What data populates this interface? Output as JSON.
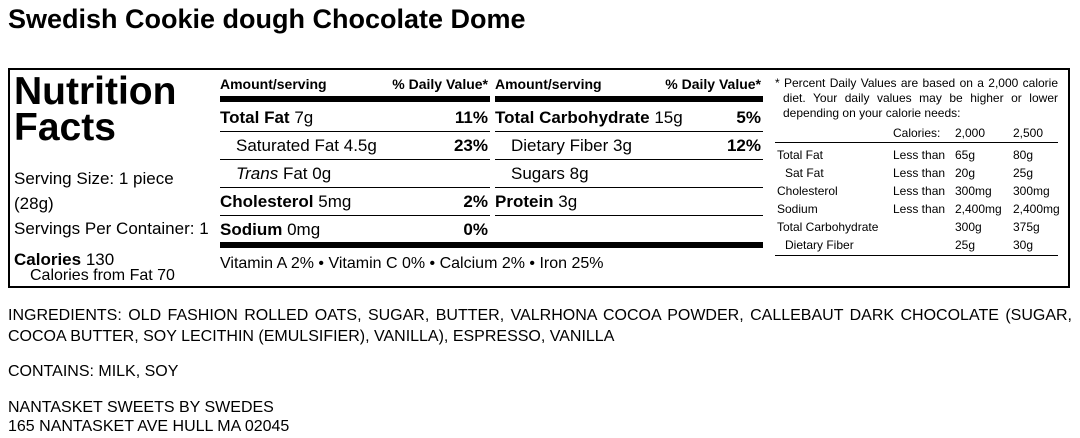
{
  "title": "Swedish Cookie dough Chocolate Dome",
  "label": {
    "heading": "Nutrition Facts",
    "serving_size": "Serving Size: 1 piece (28g)",
    "servings_per_container": "Servings Per Container: 1",
    "calories": {
      "label": "Calories",
      "value": "130"
    },
    "calories_from_fat": "Calories from Fat 70",
    "columns": [
      {
        "amount_header": "Amount/serving",
        "dv_header": "% Daily Value*",
        "rows": [
          {
            "name": "Total Fat",
            "amount": "7g",
            "dv": "11%",
            "bold": true
          },
          {
            "name": "Saturated Fat",
            "amount": "4.5g",
            "dv": "23%",
            "indent": true
          },
          {
            "italic": "Trans",
            "name": "Fat",
            "amount": "0g",
            "indent": true
          },
          {
            "name": "Cholesterol",
            "amount": "5mg",
            "dv": "2%",
            "bold": true
          },
          {
            "name": "Sodium",
            "amount": "0mg",
            "dv": "0%",
            "bold": true
          }
        ]
      },
      {
        "amount_header": "Amount/serving",
        "dv_header": "% Daily Value*",
        "rows": [
          {
            "name": "Total Carbohydrate",
            "amount": "15g",
            "dv": "5%",
            "bold": true
          },
          {
            "name": "Dietary Fiber",
            "amount": "3g",
            "dv": "12%",
            "indent": true
          },
          {
            "name": "Sugars",
            "amount": "8g",
            "indent": true
          },
          {
            "name": "Protein",
            "amount": "3g",
            "bold": true
          }
        ]
      }
    ],
    "vitamins": "Vitamin A 2% • Vitamin C 0% • Calcium 2% • Iron 25%",
    "footnote": {
      "text": "* Percent Daily Values are based on a 2,000 calorie diet. Your daily values may be higher or lower depending on your calorie needs:",
      "header": [
        "Calories:",
        "2,000",
        "2,500"
      ],
      "rows": [
        {
          "name": "Total Fat",
          "relation": "Less than",
          "v2000": "65g",
          "v2500": "80g"
        },
        {
          "name": "Sat Fat",
          "relation": "Less than",
          "v2000": "20g",
          "v2500": "25g",
          "indent": true
        },
        {
          "name": "Cholesterol",
          "relation": "Less than",
          "v2000": "300mg",
          "v2500": "300mg"
        },
        {
          "name": "Sodium",
          "relation": "Less than",
          "v2000": "2,400mg",
          "v2500": "2,400mg"
        },
        {
          "name": "Total Carbohydrate",
          "v2000": "300g",
          "v2500": "375g"
        },
        {
          "name": "Dietary Fiber",
          "v2000": "25g",
          "v2500": "30g",
          "indent": true
        }
      ]
    }
  },
  "ingredients": "INGREDIENTS: OLD FASHION ROLLED OATS, SUGAR, BUTTER, VALRHONA COCOA POWDER, CALLEBAUT DARK CHOCOLATE (SUGAR, COCOA BUTTER, SOY LECITHIN (EMULSIFIER), VANILLA), ESPRESSO, VANILLA",
  "contains": "CONTAINS: MILK, SOY",
  "manufacturer": [
    "NANTASKET SWEETS BY SWEDES",
    "165 NANTASKET AVE HULL MA 02045"
  ]
}
